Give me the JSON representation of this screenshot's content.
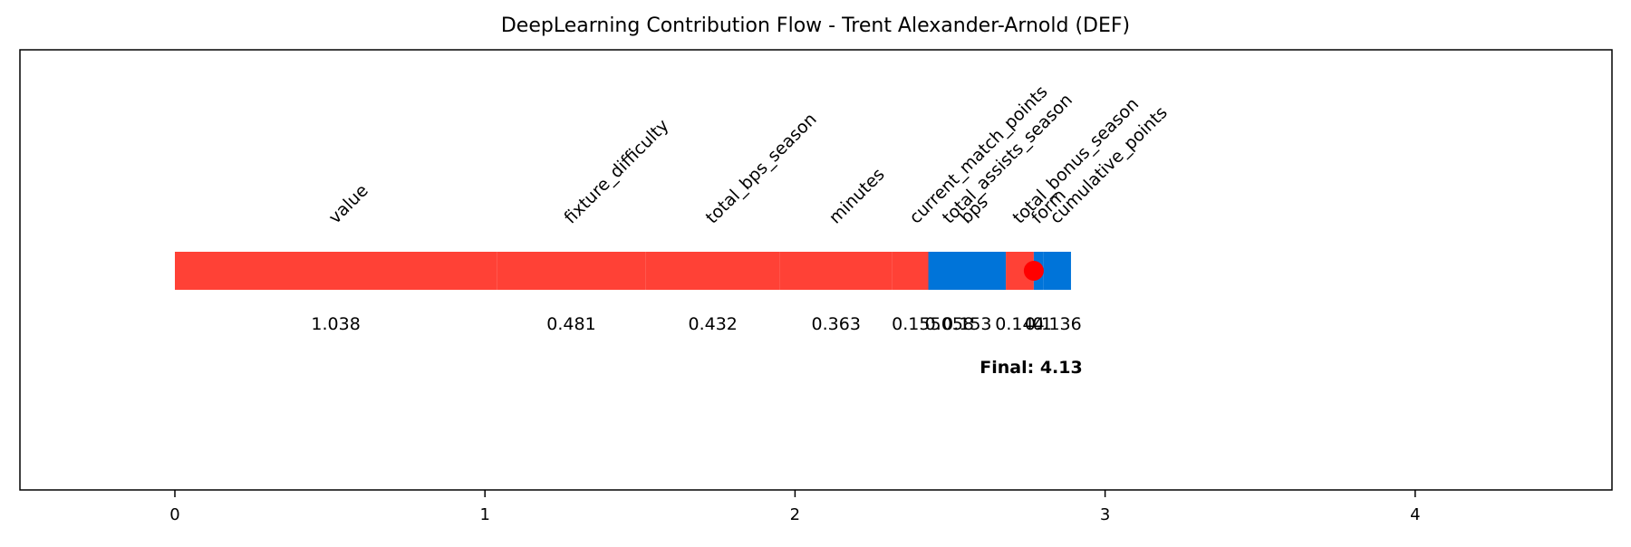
{
  "chart_data": {
    "type": "bar",
    "orientation": "horizontal",
    "title": "DeepLearning Contribution Flow - Trent Alexander-Arnold (DEF)",
    "xlabel": "",
    "ylabel": "",
    "xlim": [
      -0.5,
      4.6
    ],
    "ylim": [
      -1.0,
      1.0
    ],
    "x_ticks": [
      0,
      1,
      2,
      3,
      4
    ],
    "grid": false,
    "series": [
      {
        "feature": "value",
        "value": 1.038,
        "start": 0.0,
        "end": 1.038,
        "direction": "positive"
      },
      {
        "feature": "fixture_difficulty",
        "value": 0.481,
        "start": 1.038,
        "end": 1.519,
        "direction": "positive"
      },
      {
        "feature": "total_bps_season",
        "value": 0.432,
        "start": 1.519,
        "end": 1.951,
        "direction": "positive"
      },
      {
        "feature": "minutes",
        "value": 0.363,
        "start": 1.951,
        "end": 2.314,
        "direction": "positive"
      },
      {
        "feature": "current_match_points",
        "value": 0.155,
        "start": 2.314,
        "end": 2.469,
        "direction": "positive"
      },
      {
        "feature": "total_assists_season",
        "value": 0.058,
        "start": 2.469,
        "end": 2.527,
        "direction": "positive"
      },
      {
        "feature": "bps",
        "value": 0.153,
        "start": 2.43,
        "end": 2.68,
        "direction": "negative"
      },
      {
        "feature": "total_bonus_season",
        "value": 0.144,
        "start": 2.68,
        "end": 2.77,
        "direction": "positive"
      },
      {
        "feature": "form",
        "value": 0.1,
        "start": 2.77,
        "end": 2.8,
        "direction": "negative"
      },
      {
        "feature": "cumulative_points",
        "value": 0.136,
        "start": 2.8,
        "end": 2.89,
        "direction": "negative"
      }
    ],
    "value_labels": [
      "1.038",
      "0.481",
      "0.432",
      "0.363",
      "0.155",
      "0.058",
      "0.153",
      "0.144",
      "0.1",
      "0.136"
    ],
    "final_value": 4.13,
    "final_label": "Final: 4.13",
    "final_marker_x": 2.77,
    "colors": {
      "positive": "#ff4136",
      "negative": "#0074d9",
      "marker": "#ff0000"
    }
  }
}
